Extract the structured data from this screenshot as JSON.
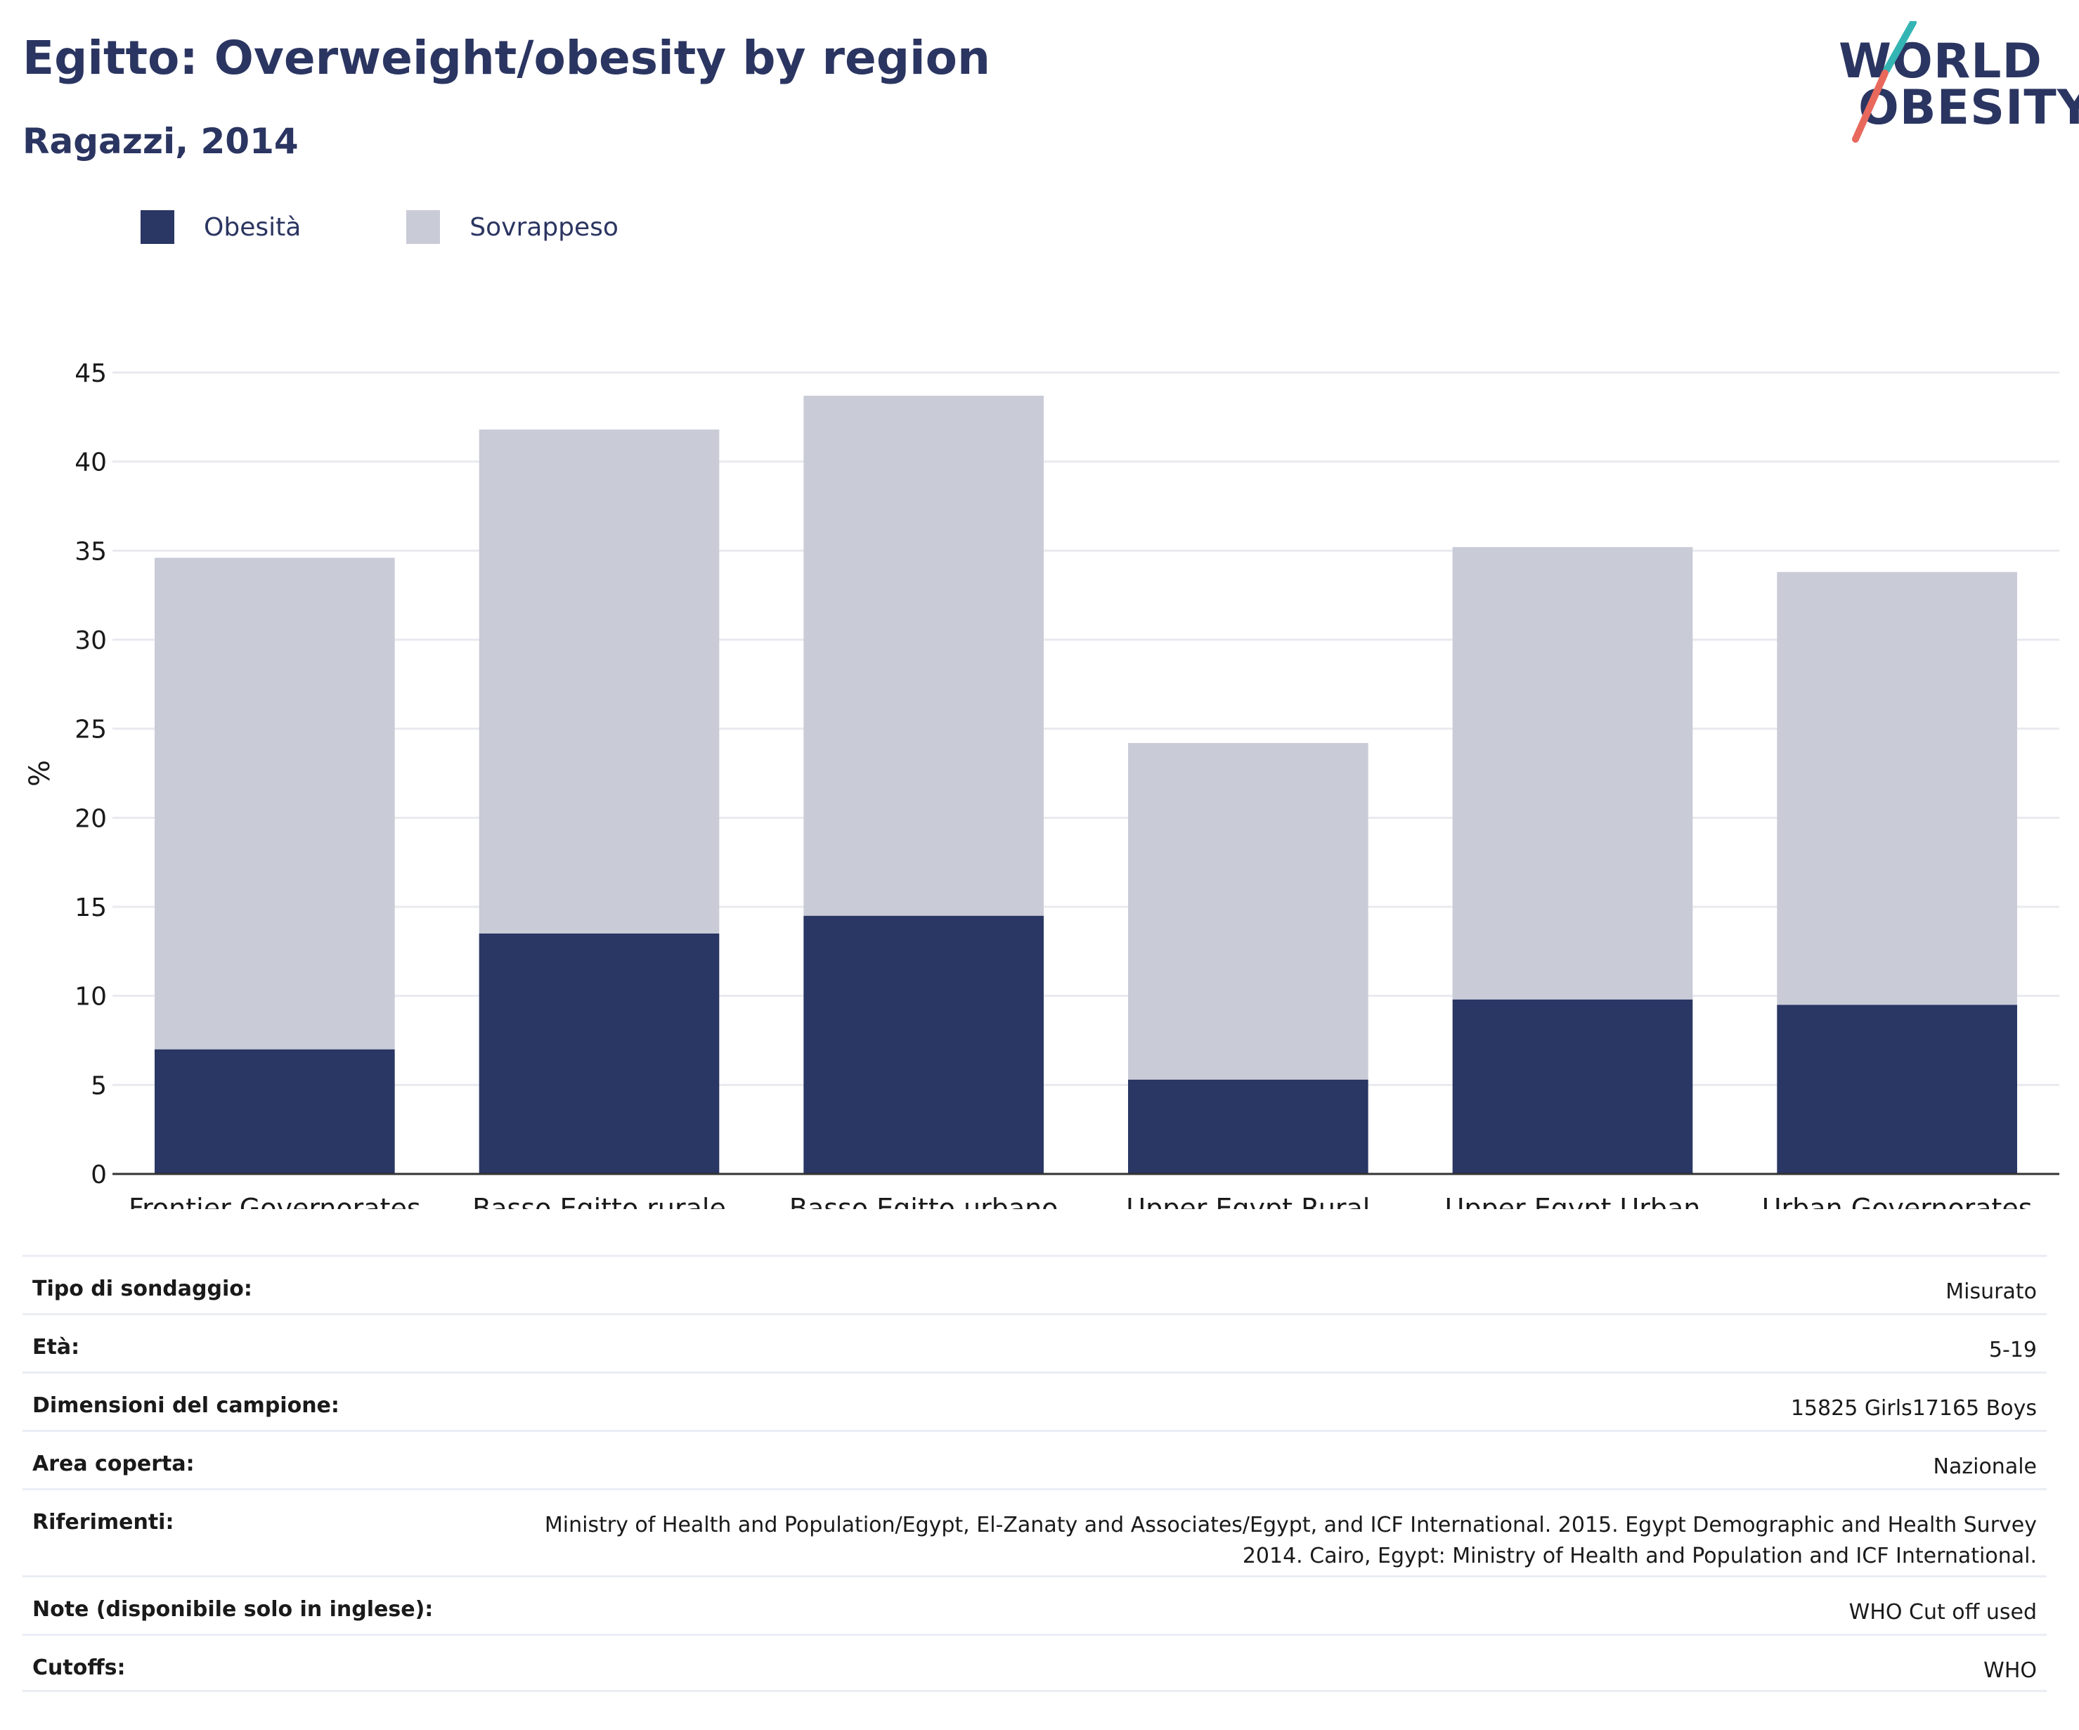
{
  "header": {
    "title": "Egitto: Overweight/obesity by region",
    "subtitle": "Ragazzi, 2014"
  },
  "logo": {
    "line1": "WORLD",
    "line2": "OBESITY"
  },
  "colors": {
    "obesity": "#2a3663",
    "overweight": "#c9cbd7",
    "text": "#2b3561",
    "grid": "#e9eaf0",
    "logo_teal": "#34b5b3",
    "logo_coral": "#e8695c"
  },
  "chart_data": {
    "type": "bar",
    "stacked": true,
    "categories": [
      "Frontier Governorates",
      "Basso Egitto rurale",
      "Basso Egitto urbano",
      "Upper Egypt Rural",
      "Upper Egypt Urban",
      "Urban Governorates"
    ],
    "series": [
      {
        "name": "Obesità",
        "values": [
          7.0,
          13.5,
          14.5,
          5.3,
          9.8,
          9.5
        ]
      },
      {
        "name": "Sovrappeso",
        "values": [
          27.6,
          28.3,
          29.2,
          18.9,
          25.4,
          24.3
        ]
      }
    ],
    "ylabel": "%",
    "ylim": [
      0,
      45
    ],
    "yticks": [
      0,
      5,
      10,
      15,
      20,
      25,
      30,
      35,
      40,
      45
    ],
    "grid": true,
    "legend": "top-left"
  },
  "info": [
    {
      "label": "Tipo di sondaggio:",
      "value": "Misurato"
    },
    {
      "label": "Età:",
      "value": "5-19"
    },
    {
      "label": "Dimensioni del campione:",
      "value": "15825 Girls17165 Boys"
    },
    {
      "label": "Area coperta:",
      "value": "Nazionale"
    },
    {
      "label": "Riferimenti:",
      "value": "Ministry of Health and Population/Egypt, El-Zanaty and Associates/Egypt, and ICF International. 2015. Egypt Demographic and Health Survey 2014. Cairo, Egypt: Ministry of Health and Population and ICF International."
    },
    {
      "label": "Note (disponibile solo in inglese):",
      "value": "WHO Cut off used"
    },
    {
      "label": "Cutoffs:",
      "value": "WHO"
    }
  ]
}
